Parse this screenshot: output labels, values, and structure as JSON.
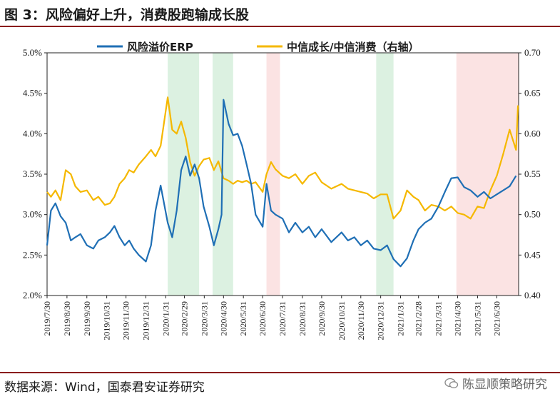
{
  "title": "图 3：风险偏好上升，消费股跑输成长股",
  "source": "数据来源：Wind，国泰君安证券研究",
  "watermark": "陈显顺策略研究",
  "colors": {
    "erp": "#1f6fb5",
    "growth_consumption": "#f5b800",
    "green_band": "#dcf1e1",
    "red_band": "#fbe3e3",
    "rule": "#8a1c1c"
  },
  "chart_data": {
    "type": "line",
    "legend": [
      "风险溢价ERP",
      "中信成长/中信消费（右轴）"
    ],
    "legend_placement": "top",
    "x_range": [
      "2019-07-30",
      "2021-08-03"
    ],
    "x_ticks": [
      "2019/7/30",
      "2019/8/30",
      "2019/9/30",
      "2019/10/31",
      "2019/11/30",
      "2019/12/31",
      "2020/1/31",
      "2020/2/29",
      "2020/3/31",
      "2020/4/30",
      "2020/5/31",
      "2020/6/30",
      "2020/7/31",
      "2020/8/31",
      "2020/9/30",
      "2020/10/31",
      "2020/11/30",
      "2020/12/31",
      "2021/1/31",
      "2021/2/28",
      "2021/3/31",
      "2021/4/30",
      "2021/5/31",
      "2021/6/30"
    ],
    "y_left": {
      "min": 0.02,
      "max": 0.05,
      "ticks": [
        "2.0%",
        "2.5%",
        "3.0%",
        "3.5%",
        "4.0%",
        "4.5%",
        "5.0%"
      ]
    },
    "y_right": {
      "min": 0.4,
      "max": 0.7,
      "ticks": [
        "0.40",
        "0.45",
        "0.50",
        "0.55",
        "0.60",
        "0.65",
        "0.70"
      ]
    },
    "grid": false,
    "shaded_periods": [
      {
        "start": "2020-02-03",
        "end": "2020-03-23",
        "color": "green"
      },
      {
        "start": "2020-04-13",
        "end": "2020-05-15",
        "color": "green"
      },
      {
        "start": "2020-07-06",
        "end": "2020-07-27",
        "color": "red"
      },
      {
        "start": "2020-12-24",
        "end": "2021-01-20",
        "color": "red-free-green"
      },
      {
        "start": "2021-04-28",
        "end": "2021-08-03",
        "color": "red"
      }
    ],
    "series": [
      {
        "name": "风险溢价ERP",
        "axis": "left",
        "x": [
          "2019-07-30",
          "2019-08-05",
          "2019-08-12",
          "2019-08-20",
          "2019-08-28",
          "2019-09-05",
          "2019-09-12",
          "2019-09-20",
          "2019-09-30",
          "2019-10-10",
          "2019-10-18",
          "2019-10-28",
          "2019-11-05",
          "2019-11-12",
          "2019-11-20",
          "2019-11-28",
          "2019-12-05",
          "2019-12-12",
          "2019-12-20",
          "2019-12-31",
          "2020-01-08",
          "2020-01-15",
          "2020-01-23",
          "2020-02-03",
          "2020-02-10",
          "2020-02-17",
          "2020-02-24",
          "2020-03-02",
          "2020-03-09",
          "2020-03-16",
          "2020-03-23",
          "2020-03-30",
          "2020-04-08",
          "2020-04-15",
          "2020-04-22",
          "2020-04-27",
          "2020-04-30",
          "2020-05-08",
          "2020-05-15",
          "2020-05-22",
          "2020-05-29",
          "2020-06-05",
          "2020-06-12",
          "2020-06-19",
          "2020-06-30",
          "2020-07-06",
          "2020-07-13",
          "2020-07-20",
          "2020-07-31",
          "2020-08-10",
          "2020-08-20",
          "2020-08-31",
          "2020-09-10",
          "2020-09-20",
          "2020-09-30",
          "2020-10-15",
          "2020-10-31",
          "2020-11-10",
          "2020-11-20",
          "2020-11-30",
          "2020-12-10",
          "2020-12-20",
          "2020-12-31",
          "2021-01-10",
          "2021-01-20",
          "2021-01-31",
          "2021-02-10",
          "2021-02-20",
          "2021-02-28",
          "2021-03-10",
          "2021-03-20",
          "2021-03-31",
          "2021-04-10",
          "2021-04-20",
          "2021-04-30",
          "2021-05-10",
          "2021-05-20",
          "2021-05-31",
          "2021-06-10",
          "2021-06-20",
          "2021-06-30",
          "2021-07-10",
          "2021-07-20",
          "2021-07-30"
        ],
        "values": [
          0.0262,
          0.0305,
          0.0314,
          0.0298,
          0.029,
          0.0268,
          0.0272,
          0.0276,
          0.0262,
          0.0258,
          0.0268,
          0.0272,
          0.0278,
          0.0286,
          0.0272,
          0.0262,
          0.0268,
          0.0258,
          0.025,
          0.0242,
          0.0262,
          0.0305,
          0.0336,
          0.029,
          0.0272,
          0.0305,
          0.0355,
          0.0372,
          0.0348,
          0.0362,
          0.0345,
          0.031,
          0.0285,
          0.0262,
          0.0282,
          0.03,
          0.0442,
          0.0412,
          0.0398,
          0.04,
          0.0385,
          0.0362,
          0.0338,
          0.03,
          0.0285,
          0.0338,
          0.0305,
          0.03,
          0.0295,
          0.0278,
          0.029,
          0.0278,
          0.0285,
          0.0272,
          0.0282,
          0.0266,
          0.0278,
          0.0268,
          0.0272,
          0.0262,
          0.0268,
          0.0258,
          0.0256,
          0.0262,
          0.0245,
          0.0236,
          0.0246,
          0.0268,
          0.0282,
          0.029,
          0.0295,
          0.031,
          0.0328,
          0.0345,
          0.0346,
          0.0334,
          0.033,
          0.0322,
          0.0328,
          0.032,
          0.0325,
          0.033,
          0.0335,
          0.0348
        ]
      },
      {
        "name": "中信成长/中信消费（右轴）",
        "axis": "right",
        "x": [
          "2019-07-30",
          "2019-08-05",
          "2019-08-12",
          "2019-08-20",
          "2019-08-28",
          "2019-09-05",
          "2019-09-12",
          "2019-09-20",
          "2019-09-30",
          "2019-10-10",
          "2019-10-18",
          "2019-10-28",
          "2019-11-05",
          "2019-11-12",
          "2019-11-20",
          "2019-11-28",
          "2019-12-05",
          "2019-12-12",
          "2019-12-20",
          "2019-12-31",
          "2020-01-08",
          "2020-01-15",
          "2020-01-23",
          "2020-02-03",
          "2020-02-10",
          "2020-02-17",
          "2020-02-24",
          "2020-03-02",
          "2020-03-09",
          "2020-03-16",
          "2020-03-23",
          "2020-03-30",
          "2020-04-08",
          "2020-04-15",
          "2020-04-22",
          "2020-04-30",
          "2020-05-08",
          "2020-05-15",
          "2020-05-22",
          "2020-05-29",
          "2020-06-05",
          "2020-06-12",
          "2020-06-19",
          "2020-06-30",
          "2020-07-06",
          "2020-07-13",
          "2020-07-20",
          "2020-07-31",
          "2020-08-10",
          "2020-08-20",
          "2020-08-31",
          "2020-09-10",
          "2020-09-20",
          "2020-09-30",
          "2020-10-15",
          "2020-10-31",
          "2020-11-10",
          "2020-11-20",
          "2020-11-30",
          "2020-12-10",
          "2020-12-20",
          "2020-12-31",
          "2021-01-10",
          "2021-01-20",
          "2021-01-31",
          "2021-02-10",
          "2021-02-20",
          "2021-02-28",
          "2021-03-10",
          "2021-03-20",
          "2021-03-31",
          "2021-04-10",
          "2021-04-20",
          "2021-04-30",
          "2021-05-10",
          "2021-05-20",
          "2021-05-31",
          "2021-06-10",
          "2021-06-20",
          "2021-06-30",
          "2021-07-10",
          "2021-07-20",
          "2021-07-30",
          "2021-08-02"
        ],
        "values": [
          0.528,
          0.522,
          0.53,
          0.518,
          0.555,
          0.55,
          0.535,
          0.528,
          0.53,
          0.518,
          0.522,
          0.512,
          0.514,
          0.522,
          0.538,
          0.545,
          0.555,
          0.552,
          0.562,
          0.572,
          0.58,
          0.572,
          0.585,
          0.645,
          0.605,
          0.6,
          0.615,
          0.595,
          0.565,
          0.548,
          0.56,
          0.568,
          0.57,
          0.555,
          0.566,
          0.545,
          0.542,
          0.538,
          0.542,
          0.54,
          0.542,
          0.538,
          0.54,
          0.528,
          0.55,
          0.565,
          0.556,
          0.548,
          0.545,
          0.55,
          0.538,
          0.548,
          0.552,
          0.54,
          0.532,
          0.538,
          0.532,
          0.53,
          0.528,
          0.526,
          0.52,
          0.525,
          0.525,
          0.495,
          0.505,
          0.53,
          0.522,
          0.518,
          0.505,
          0.512,
          0.51,
          0.505,
          0.51,
          0.502,
          0.5,
          0.495,
          0.51,
          0.508,
          0.53,
          0.548,
          0.575,
          0.605,
          0.58,
          0.635
        ]
      }
    ]
  }
}
